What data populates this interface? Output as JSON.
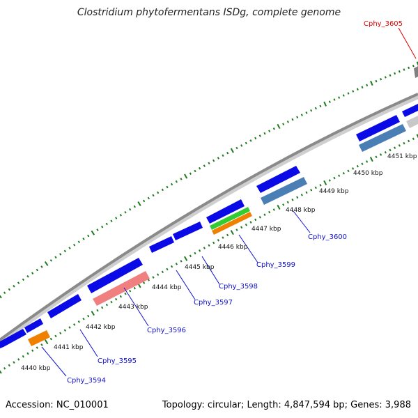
{
  "title": "Clostridium phytofermentans ISDg, complete genome",
  "footer": {
    "accession": "Accession: NC_010001",
    "summary": "Topology: circular; Length: 4,847,594 bp; Genes: 3,988"
  },
  "colors": {
    "forward_gene": "#0a0ae6",
    "backbone": "#8a8a8a",
    "tick": "#1f7a1f",
    "label": "#1010cc",
    "highlight": "#dd0000"
  },
  "kbp_labels": [
    "4440 kbp",
    "4441 kbp",
    "4442 kbp",
    "4443 kbp",
    "4444 kbp",
    "4445 kbp",
    "4446 kbp",
    "4447 kbp",
    "4448 kbp",
    "4449 kbp",
    "4450 kbp",
    "4451 kbp"
  ],
  "gene_labels": [
    "Cphy_3594",
    "Cphy_3595",
    "Cphy_3596",
    "Cphy_3597",
    "Cphy_3598",
    "Cphy_3599",
    "Cphy_3600",
    "Cphy_3605"
  ]
}
